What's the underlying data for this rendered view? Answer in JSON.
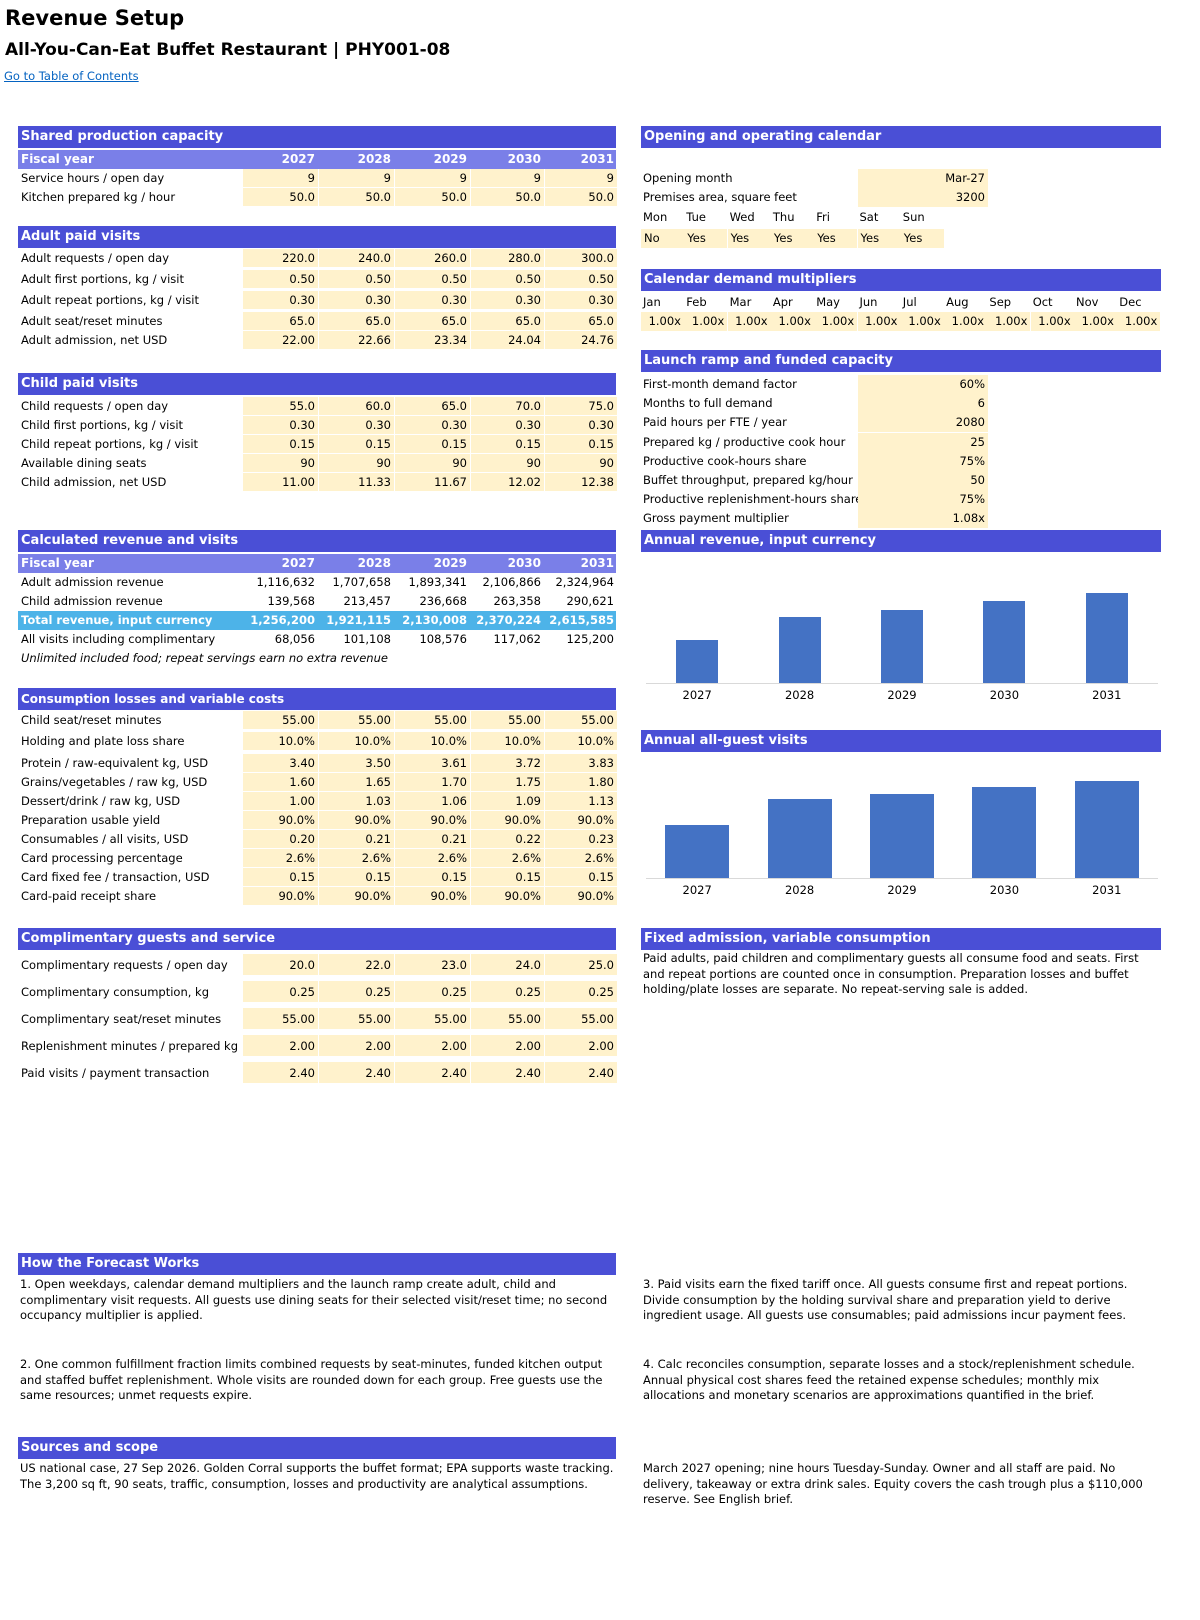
{
  "page": {
    "title": "Revenue Setup",
    "subtitle": "All-You-Can-Eat Buffet Restaurant | PHY001-08",
    "toc_link": "Go to Table of Contents"
  },
  "years": [
    "2027",
    "2028",
    "2029",
    "2030",
    "2031"
  ],
  "fiscal_year_label": "Fiscal year",
  "shared": {
    "header": "Shared production capacity",
    "rows": [
      {
        "label": "Service hours / open day",
        "values": [
          "9",
          "9",
          "9",
          "9",
          "9"
        ]
      },
      {
        "label": "Kitchen prepared kg / hour",
        "values": [
          "50.0",
          "50.0",
          "50.0",
          "50.0",
          "50.0"
        ]
      }
    ]
  },
  "adult": {
    "header": "Adult paid visits",
    "rows": [
      {
        "label": "Adult requests / open day",
        "values": [
          "220.0",
          "240.0",
          "260.0",
          "280.0",
          "300.0"
        ]
      },
      {
        "label": "Adult first portions, kg / visit",
        "values": [
          "0.50",
          "0.50",
          "0.50",
          "0.50",
          "0.50"
        ]
      },
      {
        "label": "Adult repeat portions, kg / visit",
        "values": [
          "0.30",
          "0.30",
          "0.30",
          "0.30",
          "0.30"
        ]
      },
      {
        "label": "Adult seat/reset minutes",
        "values": [
          "65.0",
          "65.0",
          "65.0",
          "65.0",
          "65.0"
        ]
      },
      {
        "label": "Adult admission, net USD",
        "values": [
          "22.00",
          "22.66",
          "23.34",
          "24.04",
          "24.76"
        ]
      }
    ]
  },
  "child": {
    "header": "Child paid visits",
    "rows": [
      {
        "label": "Child requests / open day",
        "values": [
          "55.0",
          "60.0",
          "65.0",
          "70.0",
          "75.0"
        ]
      },
      {
        "label": "Child first portions, kg / visit",
        "values": [
          "0.30",
          "0.30",
          "0.30",
          "0.30",
          "0.30"
        ]
      },
      {
        "label": "Child repeat portions, kg / visit",
        "values": [
          "0.15",
          "0.15",
          "0.15",
          "0.15",
          "0.15"
        ]
      },
      {
        "label": "Available dining seats",
        "values": [
          "90",
          "90",
          "90",
          "90",
          "90"
        ]
      },
      {
        "label": "Child admission, net USD",
        "values": [
          "11.00",
          "11.33",
          "11.67",
          "12.02",
          "12.38"
        ]
      }
    ]
  },
  "calc": {
    "header": "Calculated revenue and visits",
    "rows": [
      {
        "label": "Adult admission revenue",
        "values": [
          "1,116,632",
          "1,707,658",
          "1,893,341",
          "2,106,866",
          "2,324,964"
        ]
      },
      {
        "label": "Child admission revenue",
        "values": [
          "139,568",
          "213,457",
          "236,668",
          "263,358",
          "290,621"
        ]
      }
    ],
    "total": {
      "label": "Total revenue, input currency",
      "values": [
        "1,256,200",
        "1,921,115",
        "2,130,008",
        "2,370,224",
        "2,615,585"
      ]
    },
    "visits": {
      "label": "All visits including complimentary",
      "values": [
        "68,056",
        "101,108",
        "108,576",
        "117,062",
        "125,200"
      ]
    },
    "note": "Unlimited included food; repeat servings earn no extra revenue"
  },
  "consumption": {
    "header": "Consumption losses and variable costs",
    "rows": [
      {
        "label": "Child seat/reset minutes",
        "values": [
          "55.00",
          "55.00",
          "55.00",
          "55.00",
          "55.00"
        ]
      },
      {
        "label": "Holding and plate loss share",
        "values": [
          "10.0%",
          "10.0%",
          "10.0%",
          "10.0%",
          "10.0%"
        ]
      },
      {
        "label": "Protein / raw-equivalent kg, USD",
        "values": [
          "3.40",
          "3.50",
          "3.61",
          "3.72",
          "3.83"
        ]
      },
      {
        "label": "Grains/vegetables / raw kg, USD",
        "values": [
          "1.60",
          "1.65",
          "1.70",
          "1.75",
          "1.80"
        ]
      },
      {
        "label": "Dessert/drink / raw kg, USD",
        "values": [
          "1.00",
          "1.03",
          "1.06",
          "1.09",
          "1.13"
        ]
      },
      {
        "label": "Preparation usable yield",
        "values": [
          "90.0%",
          "90.0%",
          "90.0%",
          "90.0%",
          "90.0%"
        ]
      },
      {
        "label": "Consumables / all visits, USD",
        "values": [
          "0.20",
          "0.21",
          "0.21",
          "0.22",
          "0.23"
        ]
      },
      {
        "label": "Card processing percentage",
        "values": [
          "2.6%",
          "2.6%",
          "2.6%",
          "2.6%",
          "2.6%"
        ]
      },
      {
        "label": "Card fixed fee / transaction, USD",
        "values": [
          "0.15",
          "0.15",
          "0.15",
          "0.15",
          "0.15"
        ]
      },
      {
        "label": "Card-paid receipt share",
        "values": [
          "90.0%",
          "90.0%",
          "90.0%",
          "90.0%",
          "90.0%"
        ]
      }
    ]
  },
  "comp": {
    "header": "Complimentary guests and service",
    "rows": [
      {
        "label": "Complimentary requests / open day",
        "values": [
          "20.0",
          "22.0",
          "23.0",
          "24.0",
          "25.0"
        ]
      },
      {
        "label": "Complimentary consumption, kg",
        "values": [
          "0.25",
          "0.25",
          "0.25",
          "0.25",
          "0.25"
        ]
      },
      {
        "label": "Complimentary seat/reset minutes",
        "values": [
          "55.00",
          "55.00",
          "55.00",
          "55.00",
          "55.00"
        ]
      },
      {
        "label": "Replenishment minutes / prepared kg",
        "values": [
          "2.00",
          "2.00",
          "2.00",
          "2.00",
          "2.00"
        ]
      },
      {
        "label": "Paid visits / payment transaction",
        "values": [
          "2.40",
          "2.40",
          "2.40",
          "2.40",
          "2.40"
        ]
      }
    ]
  },
  "calendar": {
    "header": "Opening and operating calendar",
    "opening_month_label": "Opening month",
    "opening_month": "Mar-27",
    "premises_label": "Premises area, square feet",
    "premises": "3200",
    "days": [
      "Mon",
      "Tue",
      "Wed",
      "Thu",
      "Fri",
      "Sat",
      "Sun"
    ],
    "open": [
      "No",
      "Yes",
      "Yes",
      "Yes",
      "Yes",
      "Yes",
      "Yes"
    ]
  },
  "multipliers": {
    "header": "Calendar demand multipliers",
    "months": [
      "Jan",
      "Feb",
      "Mar",
      "Apr",
      "May",
      "Jun",
      "Jul",
      "Aug",
      "Sep",
      "Oct",
      "Nov",
      "Dec"
    ],
    "values": [
      "1.00x",
      "1.00x",
      "1.00x",
      "1.00x",
      "1.00x",
      "1.00x",
      "1.00x",
      "1.00x",
      "1.00x",
      "1.00x",
      "1.00x",
      "1.00x"
    ]
  },
  "ramp": {
    "header": "Launch ramp and funded capacity",
    "rows": [
      {
        "label": "First-month demand factor",
        "value": "60%"
      },
      {
        "label": "Months to full demand",
        "value": "6"
      },
      {
        "label": "Paid hours per FTE / year",
        "value": "2080"
      },
      {
        "label": "Prepared kg / productive cook hour",
        "value": "25"
      },
      {
        "label": "Productive cook-hours share",
        "value": "75%"
      },
      {
        "label": "Buffet throughput, prepared kg/hour",
        "value": "50"
      },
      {
        "label": "Productive replenishment-hours share",
        "value": "75%"
      },
      {
        "label": "Gross payment multiplier",
        "value": "1.08x"
      }
    ]
  },
  "chart_data": [
    {
      "type": "bar",
      "title": "Annual revenue, input currency",
      "categories": [
        "2027",
        "2028",
        "2029",
        "2030",
        "2031"
      ],
      "values": [
        1256200,
        1921115,
        2130008,
        2370224,
        2615585
      ],
      "ylim": [
        0,
        2900000
      ],
      "grid": false,
      "color": "#4472C4"
    },
    {
      "type": "bar",
      "title": "Annual all-guest visits",
      "categories": [
        "2027",
        "2028",
        "2029",
        "2030",
        "2031"
      ],
      "values": [
        68056,
        101108,
        108576,
        117062,
        125200
      ],
      "ylim": [
        0,
        135000
      ],
      "grid": false,
      "color": "#4472C4"
    }
  ],
  "fixed": {
    "header": "Fixed admission, variable consumption",
    "text": "Paid adults, paid children and complimentary guests all consume food and seats. First and repeat portions are counted once in consumption. Preparation losses and buffet holding/plate losses are separate. No repeat-serving sale is added."
  },
  "how": {
    "header": "How the Forecast Works",
    "p1": "1. Open weekdays, calendar demand multipliers and the launch ramp create adult, child and complimentary visit requests. All guests use dining seats for their selected visit/reset time; no second occupancy multiplier is applied.",
    "p2": "2. One common fulfillment fraction limits combined requests by seat-minutes, funded kitchen output and staffed buffet replenishment. Whole visits are rounded down for each group. Free guests use the same resources; unmet requests expire.",
    "p3": "3. Paid visits earn the fixed tariff once. All guests consume first and repeat portions. Divide consumption by the holding survival share and preparation yield to derive ingredient usage. All guests use consumables; paid admissions incur payment fees.",
    "p4": "4. Calc reconciles consumption, separate losses and a stock/replenishment schedule. Annual physical cost shares feed the retained expense schedules; monthly mix allocations and monetary scenarios are approximations quantified in the brief."
  },
  "sources": {
    "header": "Sources and scope",
    "p1": "US national case, 27 Sep 2026. Golden Corral supports the buffet format; EPA supports waste tracking. The 3,200 sq ft, 90 seats, traffic, consumption, losses and productivity are analytical assumptions.",
    "p2": "March 2027 opening; nine hours Tuesday-Sunday. Owner and all staff are paid. No delivery, takeaway or extra drink sales. Equity covers the cash trough plus a $110,000 reserve. See English brief."
  }
}
